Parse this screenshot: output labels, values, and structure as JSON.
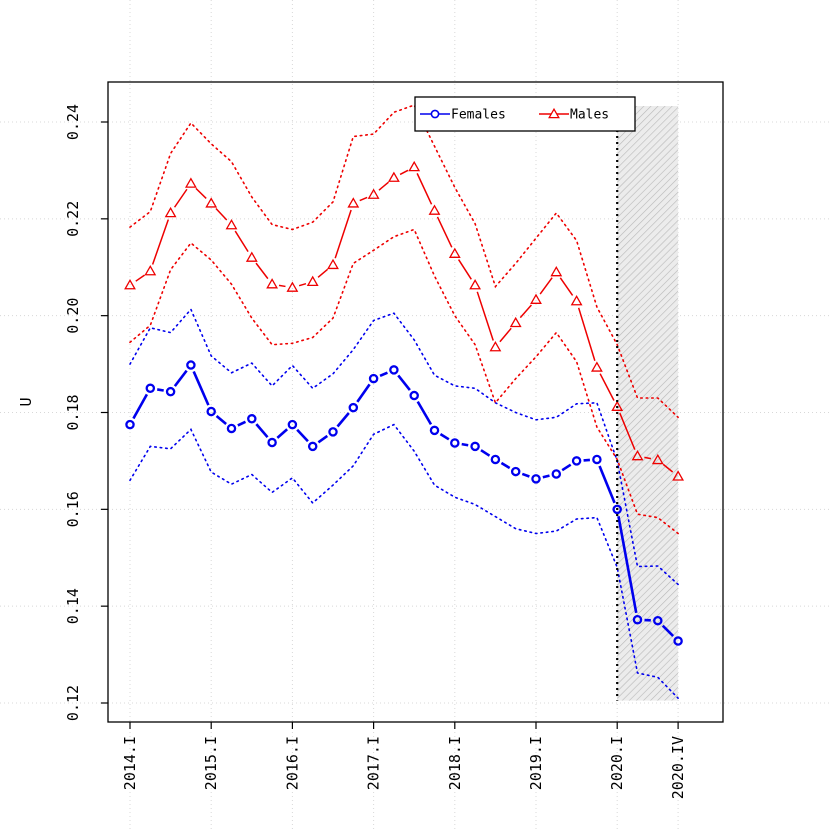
{
  "chart_data": {
    "type": "line",
    "title": "",
    "xlabel": "",
    "ylabel": "U",
    "ylim": [
      0.12,
      0.24
    ],
    "yticks": [
      0.12,
      0.14,
      0.16,
      0.18,
      0.2,
      0.22,
      0.24
    ],
    "ytick_labels": [
      "0.12",
      "0.14",
      "0.16",
      "0.18",
      "0.20",
      "0.22",
      "0.24"
    ],
    "x_tick_labels": [
      "2014.I",
      "2015.I",
      "2016.I",
      "2017.I",
      "2018.I",
      "2019.I",
      "2020.I",
      "2020.IV"
    ],
    "x_tick_positions": [
      0,
      4,
      8,
      12,
      16,
      20,
      24,
      27
    ],
    "grid": true,
    "legend_position": "top-right",
    "forecast_start_index": 24,
    "forecast_band": "hatched grey",
    "series": [
      {
        "name": "Females",
        "color": "#0000ee",
        "marker": "circle",
        "values": [
          0.1775,
          0.185,
          0.1843,
          0.1898,
          0.1802,
          0.1767,
          0.1787,
          0.1738,
          0.1775,
          0.173,
          0.176,
          0.181,
          0.187,
          0.1888,
          0.1835,
          0.1763,
          0.1737,
          0.173,
          0.1703,
          0.1678,
          0.1663,
          0.1673,
          0.17,
          0.1703,
          0.16,
          0.1372,
          0.137,
          0.1328
        ],
        "lower": [
          0.166,
          0.173,
          0.1725,
          0.1765,
          0.1677,
          0.1652,
          0.1672,
          0.1635,
          0.1665,
          0.1613,
          0.165,
          0.169,
          0.1755,
          0.1775,
          0.172,
          0.165,
          0.1625,
          0.161,
          0.1585,
          0.156,
          0.155,
          0.1555,
          0.158,
          0.1583,
          0.148,
          0.1262,
          0.1253,
          0.121
        ],
        "upper": [
          0.19,
          0.1975,
          0.1965,
          0.2013,
          0.1917,
          0.1882,
          0.1902,
          0.1855,
          0.1897,
          0.185,
          0.188,
          0.193,
          0.199,
          0.2005,
          0.195,
          0.1877,
          0.1855,
          0.185,
          0.182,
          0.18,
          0.1785,
          0.179,
          0.1818,
          0.182,
          0.17,
          0.1482,
          0.1483,
          0.1445
        ]
      },
      {
        "name": "Males",
        "color": "#ee0000",
        "marker": "triangle",
        "values": [
          0.2063,
          0.2092,
          0.2212,
          0.2273,
          0.2232,
          0.2187,
          0.212,
          0.2065,
          0.2058,
          0.207,
          0.2105,
          0.2232,
          0.225,
          0.2285,
          0.2307,
          0.2217,
          0.2128,
          0.2063,
          0.1935,
          0.1985,
          0.2033,
          0.209,
          0.203,
          0.1893,
          0.1812,
          0.171,
          0.1702,
          0.1668
        ],
        "lower": [
          0.1945,
          0.198,
          0.2095,
          0.215,
          0.2115,
          0.2065,
          0.1995,
          0.194,
          0.1943,
          0.1955,
          0.1995,
          0.2108,
          0.2135,
          0.2163,
          0.2178,
          0.2082,
          0.2,
          0.194,
          0.182,
          0.187,
          0.1915,
          0.1965,
          0.1905,
          0.177,
          0.1703,
          0.159,
          0.1583,
          0.155
        ],
        "upper": [
          0.2183,
          0.2215,
          0.2335,
          0.2398,
          0.2355,
          0.2318,
          0.2245,
          0.2188,
          0.2178,
          0.2193,
          0.2235,
          0.237,
          0.2375,
          0.242,
          0.2435,
          0.235,
          0.2265,
          0.219,
          0.206,
          0.2108,
          0.216,
          0.2212,
          0.2155,
          0.2018,
          0.194,
          0.183,
          0.183,
          0.179
        ]
      }
    ]
  }
}
